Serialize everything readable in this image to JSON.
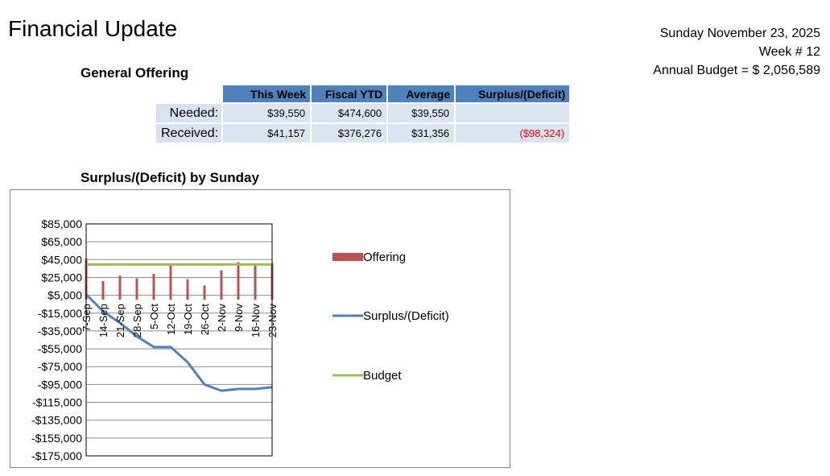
{
  "header": {
    "title": "Financial Update",
    "date": "Sunday November 23, 2025",
    "week": "Week # 12",
    "annual_budget": "Annual Budget = $ 2,056,589"
  },
  "offering": {
    "heading": "General Offering",
    "columns": [
      "This Week",
      "Fiscal YTD",
      "Average",
      "Surplus/(Deficit)"
    ],
    "rows": [
      {
        "label": "Needed:",
        "cells": [
          "$39,550",
          "$474,600",
          "$39,550",
          ""
        ]
      },
      {
        "label": "Received:",
        "cells": [
          "$41,157",
          "$376,276",
          "$31,356",
          "($98,324)"
        ]
      }
    ],
    "negative_color": "#ff0000"
  },
  "chart_heading": "Surplus/(Deficit) by Sunday",
  "chart_data": {
    "type": "line",
    "categories": [
      "7-Sep",
      "14-Sep",
      "21-Sep",
      "28-Sep",
      "5-Oct",
      "12-Oct",
      "19-Oct",
      "26-Oct",
      "2-Nov",
      "9-Nov",
      "16-Nov",
      "23-Nov"
    ],
    "ylim": [
      -175000,
      85000
    ],
    "yticks": [
      85000,
      65000,
      45000,
      25000,
      5000,
      -15000,
      -35000,
      -55000,
      -75000,
      -95000,
      -115000,
      -135000,
      -155000,
      -175000
    ],
    "ytick_labels": [
      "$85,000",
      "$65,000",
      "$45,000",
      "$25,000",
      "$5,000",
      "-$15,000",
      "-$35,000",
      "-$55,000",
      "-$75,000",
      "-$95,000",
      "-$115,000",
      "-$135,000",
      "-$155,000",
      "-$175,000"
    ],
    "grid": true,
    "legend_position": "right",
    "series": [
      {
        "name": "Offering",
        "kind": "bar",
        "color": "#c0504d",
        "values": [
          46000,
          21000,
          27000,
          24000,
          29000,
          39000,
          23000,
          16000,
          33000,
          42000,
          40000,
          41000
        ]
      },
      {
        "name": "Surplus/(Deficit)",
        "kind": "line",
        "color": "#4f81bd",
        "values": [
          6000,
          -13000,
          -26000,
          -41000,
          -53000,
          -53000,
          -70000,
          -95000,
          -102000,
          -100000,
          -100000,
          -98000
        ]
      },
      {
        "name": "Budget",
        "kind": "line",
        "color": "#9bbb59",
        "values": [
          39550,
          39550,
          39550,
          39550,
          39550,
          39550,
          39550,
          39550,
          39550,
          39550,
          39550,
          39550
        ]
      }
    ]
  }
}
